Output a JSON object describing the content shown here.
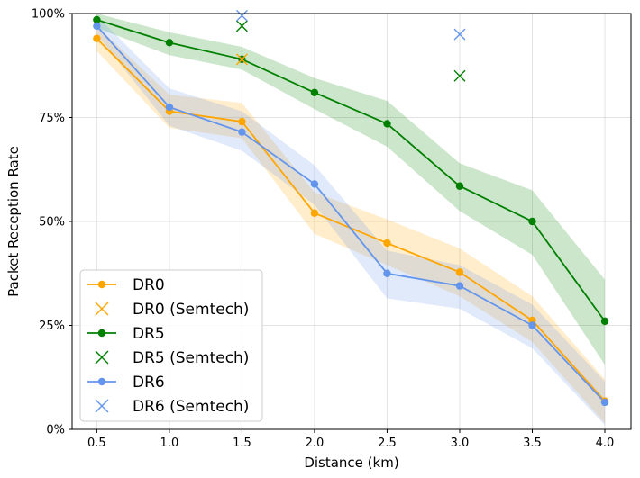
{
  "chart_data": {
    "type": "line",
    "title": "",
    "xlabel": "Distance (km)",
    "ylabel": "Packet Reception Rate",
    "x": [
      0.5,
      1.0,
      1.5,
      2.0,
      2.5,
      3.0,
      3.5,
      4.0
    ],
    "x_ticks": [
      "0.5",
      "1.0",
      "1.5",
      "2.0",
      "2.5",
      "3.0",
      "3.5",
      "4.0"
    ],
    "xlim": [
      0.33,
      4.18
    ],
    "ylim": [
      0,
      100
    ],
    "y_ticks": [
      0,
      25,
      50,
      75,
      100
    ],
    "y_tick_labels": [
      "0%",
      "25%",
      "50%",
      "75%",
      "100%"
    ],
    "grid": true,
    "legend_position": "lower-left",
    "series": [
      {
        "name": "DR0",
        "color": "#ffa500",
        "values": [
          94.0,
          76.5,
          74.0,
          52.0,
          44.8,
          37.8,
          26.2,
          6.8
        ],
        "lower": [
          91.0,
          72.5,
          70.0,
          47.0,
          39.5,
          32.0,
          21.0,
          1.5
        ],
        "upper": [
          97.0,
          80.5,
          78.5,
          57.0,
          50.5,
          43.5,
          32.0,
          12.0
        ]
      },
      {
        "name": "DR5",
        "color": "#008000",
        "values": [
          98.5,
          93.0,
          89.0,
          81.0,
          73.5,
          58.5,
          50.0,
          26.0
        ],
        "lower": [
          96.5,
          90.0,
          86.5,
          77.0,
          68.0,
          52.5,
          42.0,
          15.5
        ],
        "upper": [
          100.0,
          95.5,
          92.0,
          84.5,
          79.0,
          64.0,
          57.5,
          36.0
        ]
      },
      {
        "name": "DR6",
        "color": "#6495ed",
        "values": [
          97.0,
          77.5,
          71.5,
          59.0,
          37.5,
          34.5,
          25.0,
          6.5
        ],
        "lower": [
          95.0,
          73.0,
          67.0,
          54.0,
          31.5,
          29.0,
          19.5,
          1.0
        ],
        "upper": [
          99.5,
          82.0,
          76.5,
          63.5,
          43.0,
          39.5,
          30.0,
          11.5
        ]
      }
    ],
    "semtech_series": [
      {
        "name": "DR0 (Semtech)",
        "color": "#ffa500",
        "points": [
          {
            "x": 1.5,
            "y": 89.0
          }
        ]
      },
      {
        "name": "DR5 (Semtech)",
        "color": "#008000",
        "points": [
          {
            "x": 1.5,
            "y": 97.0
          },
          {
            "x": 3.0,
            "y": 85.0
          }
        ]
      },
      {
        "name": "DR6 (Semtech)",
        "color": "#6495ed",
        "points": [
          {
            "x": 1.5,
            "y": 99.5
          },
          {
            "x": 3.0,
            "y": 95.0
          }
        ]
      }
    ],
    "legend": [
      "DR0",
      "DR0 (Semtech)",
      "DR5",
      "DR5 (Semtech)",
      "DR6",
      "DR6 (Semtech)"
    ]
  }
}
